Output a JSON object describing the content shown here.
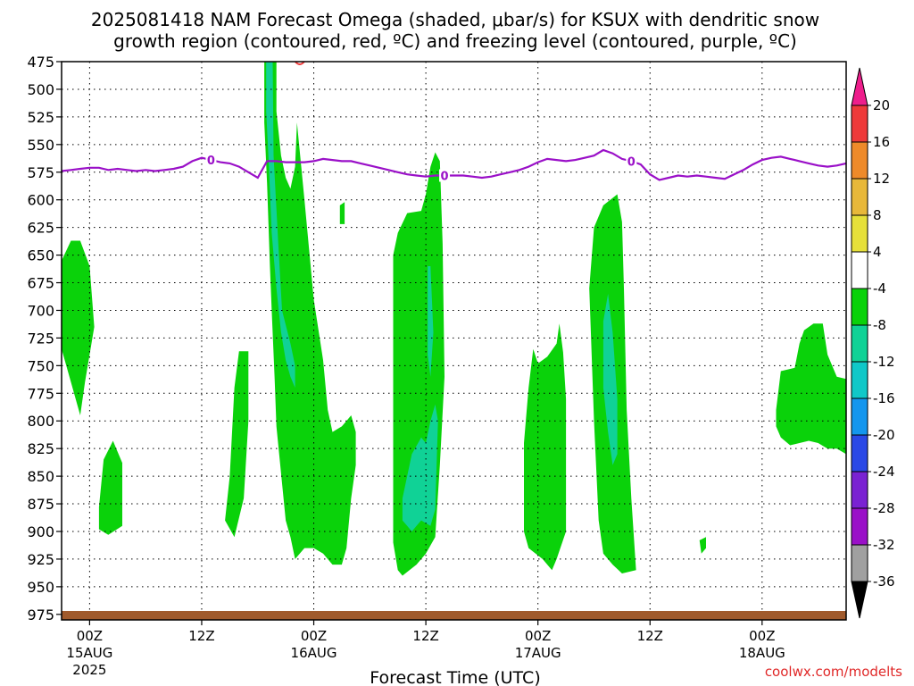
{
  "title_line1": "2025081418 NAM Forecast Omega (shaded, μbar/s) for KSUX with dendritic snow",
  "title_line2": "growth region (contoured, red, ºC) and freezing level (contoured, purple, ºC)",
  "credit": "coolwx.com/modelts",
  "chart_data": {
    "type": "heatmap",
    "xlabel": "Forecast Time (UTC)",
    "ylabel": "",
    "x_unit": "hours from 2025-08-14 18Z",
    "xlim": [
      3,
      87
    ],
    "ylim": [
      475,
      980
    ],
    "y_inverted": true,
    "y_ticks": [
      475,
      500,
      525,
      550,
      575,
      600,
      625,
      650,
      675,
      700,
      725,
      750,
      775,
      800,
      825,
      850,
      875,
      900,
      925,
      950,
      975
    ],
    "x_ticks": [
      {
        "x": 6,
        "label": "00Z",
        "sub": "15AUG",
        "sub2": "2025"
      },
      {
        "x": 18,
        "label": "12Z",
        "sub": "",
        "sub2": ""
      },
      {
        "x": 30,
        "label": "00Z",
        "sub": "16AUG",
        "sub2": ""
      },
      {
        "x": 42,
        "label": "12Z",
        "sub": "",
        "sub2": ""
      },
      {
        "x": 54,
        "label": "00Z",
        "sub": "17AUG",
        "sub2": ""
      },
      {
        "x": 66,
        "label": "12Z",
        "sub": "",
        "sub2": ""
      },
      {
        "x": 78,
        "label": "00Z",
        "sub": "18AUG",
        "sub2": ""
      }
    ],
    "grid": true,
    "colorbar": {
      "labels": [
        "20",
        "16",
        "12",
        "8",
        "4",
        "-4",
        "-8",
        "-12",
        "-16",
        "-20",
        "-24",
        "-28",
        "-32",
        "-36"
      ],
      "colors": [
        "#ee3a3a",
        "#ee8a2a",
        "#e8b83a",
        "#e6e03a",
        "#ffffff",
        "#0ad20a",
        "#10d296",
        "#10c8c8",
        "#1496ee",
        "#2a48e6",
        "#7a22d2",
        "#9a10c8",
        "#a0a0a0"
      ],
      "max_color": "#ee1e8c",
      "min_color": "#000000"
    },
    "freezing_level_contour_label": "0",
    "freezing_level": [
      [
        3,
        574
      ],
      [
        4,
        573
      ],
      [
        5,
        572
      ],
      [
        6,
        571
      ],
      [
        7,
        571
      ],
      [
        8,
        573
      ],
      [
        9,
        572
      ],
      [
        10,
        573
      ],
      [
        11,
        574
      ],
      [
        12,
        573
      ],
      [
        13,
        574
      ],
      [
        14,
        573
      ],
      [
        15,
        572
      ],
      [
        16,
        570
      ],
      [
        17,
        565
      ],
      [
        18,
        562
      ],
      [
        19,
        564
      ],
      [
        20,
        566
      ],
      [
        21,
        567
      ],
      [
        22,
        570
      ],
      [
        23,
        575
      ],
      [
        24,
        580
      ],
      [
        25,
        565
      ],
      [
        26,
        565
      ],
      [
        27,
        566
      ],
      [
        28,
        566
      ],
      [
        29,
        566
      ],
      [
        30,
        565
      ],
      [
        31,
        563
      ],
      [
        32,
        564
      ],
      [
        33,
        565
      ],
      [
        34,
        565
      ],
      [
        35,
        567
      ],
      [
        36,
        569
      ],
      [
        37,
        571
      ],
      [
        38,
        573
      ],
      [
        39,
        575
      ],
      [
        40,
        577
      ],
      [
        41,
        578
      ],
      [
        42,
        579
      ],
      [
        43,
        578
      ],
      [
        44,
        578
      ],
      [
        45,
        578
      ],
      [
        46,
        578
      ],
      [
        47,
        579
      ],
      [
        48,
        580
      ],
      [
        49,
        579
      ],
      [
        50,
        577
      ],
      [
        51,
        575
      ],
      [
        52,
        573
      ],
      [
        53,
        570
      ],
      [
        54,
        566
      ],
      [
        55,
        563
      ],
      [
        56,
        564
      ],
      [
        57,
        565
      ],
      [
        58,
        564
      ],
      [
        59,
        562
      ],
      [
        60,
        560
      ],
      [
        61,
        555
      ],
      [
        62,
        558
      ],
      [
        63,
        563
      ],
      [
        64,
        565
      ],
      [
        65,
        568
      ],
      [
        66,
        577
      ],
      [
        67,
        582
      ],
      [
        68,
        580
      ],
      [
        69,
        578
      ],
      [
        70,
        579
      ],
      [
        71,
        578
      ],
      [
        72,
        579
      ],
      [
        73,
        580
      ],
      [
        74,
        581
      ],
      [
        75,
        577
      ],
      [
        76,
        573
      ],
      [
        77,
        568
      ],
      [
        78,
        564
      ],
      [
        79,
        562
      ],
      [
        80,
        561
      ],
      [
        81,
        563
      ],
      [
        82,
        565
      ],
      [
        83,
        567
      ],
      [
        84,
        569
      ],
      [
        85,
        570
      ],
      [
        86,
        569
      ],
      [
        87,
        567
      ]
    ],
    "dendritic_growth_region": [
      [
        28.5,
        475
      ]
    ],
    "shaded_regions": [
      {
        "omega": "-4",
        "points": [
          [
            3,
            655
          ],
          [
            4,
            637
          ],
          [
            5,
            637
          ],
          [
            6,
            660
          ],
          [
            6.5,
            715
          ],
          [
            5.5,
            765
          ],
          [
            5,
            795
          ],
          [
            4,
            765
          ],
          [
            3,
            735
          ]
        ]
      },
      {
        "omega": "-4",
        "points": [
          [
            7,
            878
          ],
          [
            7.5,
            835
          ],
          [
            8.5,
            818
          ],
          [
            9.5,
            838
          ],
          [
            9.5,
            895
          ],
          [
            8,
            903
          ],
          [
            7,
            898
          ]
        ]
      },
      {
        "omega": "-4",
        "points": [
          [
            20.5,
            890
          ],
          [
            21,
            850
          ],
          [
            21.5,
            770
          ],
          [
            22,
            737
          ],
          [
            23,
            737
          ],
          [
            23,
            800
          ],
          [
            22.5,
            870
          ],
          [
            21.5,
            905
          ]
        ]
      },
      {
        "omega": "-4",
        "points": [
          [
            24.7,
            475
          ],
          [
            26,
            475
          ],
          [
            26,
            520
          ],
          [
            26.5,
            560
          ],
          [
            27,
            580
          ],
          [
            27.5,
            590
          ],
          [
            28,
            570
          ],
          [
            28.2,
            530
          ],
          [
            29,
            600
          ],
          [
            30,
            690
          ],
          [
            31,
            745
          ],
          [
            31.5,
            790
          ],
          [
            32,
            810
          ],
          [
            33,
            805
          ],
          [
            33.5,
            800
          ],
          [
            34,
            795
          ],
          [
            34.5,
            810
          ],
          [
            34.5,
            840
          ],
          [
            34,
            870
          ],
          [
            33.5,
            915
          ],
          [
            33,
            930
          ],
          [
            32,
            930
          ],
          [
            31,
            920
          ],
          [
            30,
            915
          ],
          [
            29,
            915
          ],
          [
            28,
            925
          ],
          [
            27.5,
            905
          ],
          [
            27,
            890
          ],
          [
            26,
            805
          ],
          [
            25.8,
            760
          ],
          [
            25.5,
            700
          ],
          [
            25.3,
            660
          ],
          [
            25,
            585
          ],
          [
            24.7,
            530
          ]
        ]
      },
      {
        "omega": "-4",
        "points": [
          [
            32.8,
            605
          ],
          [
            33.3,
            602
          ],
          [
            33.3,
            622
          ],
          [
            32.8,
            622
          ]
        ]
      },
      {
        "omega": "-4",
        "points": [
          [
            38.5,
            650
          ],
          [
            39,
            630
          ],
          [
            40,
            612
          ],
          [
            41.5,
            610
          ],
          [
            42,
            595
          ],
          [
            42.5,
            570
          ],
          [
            43,
            557
          ],
          [
            43.5,
            565
          ],
          [
            43.8,
            640
          ],
          [
            44,
            760
          ],
          [
            43.5,
            840
          ],
          [
            43,
            905
          ],
          [
            42,
            920
          ],
          [
            41,
            930
          ],
          [
            39.5,
            940
          ],
          [
            39,
            935
          ],
          [
            38.5,
            910
          ],
          [
            38.5,
            790
          ]
        ]
      },
      {
        "omega": "-4",
        "points": [
          [
            52.5,
            820
          ],
          [
            53,
            770
          ],
          [
            53.5,
            735
          ],
          [
            54,
            748
          ],
          [
            55,
            742
          ],
          [
            56,
            730
          ],
          [
            56.3,
            712
          ],
          [
            56.7,
            738
          ],
          [
            57,
            780
          ],
          [
            57,
            900
          ],
          [
            56,
            925
          ],
          [
            55.5,
            935
          ],
          [
            54.5,
            925
          ],
          [
            53,
            915
          ],
          [
            52.5,
            900
          ]
        ]
      },
      {
        "omega": "-4",
        "points": [
          [
            59.5,
            680
          ],
          [
            60,
            625
          ],
          [
            61,
            605
          ],
          [
            62.5,
            595
          ],
          [
            63,
            620
          ],
          [
            63.2,
            680
          ],
          [
            63.5,
            790
          ],
          [
            64,
            870
          ],
          [
            64.5,
            935
          ],
          [
            63,
            938
          ],
          [
            62,
            930
          ],
          [
            61,
            920
          ],
          [
            60.5,
            890
          ],
          [
            60,
            800
          ]
        ]
      },
      {
        "omega": "-4",
        "points": [
          [
            71.3,
            908
          ],
          [
            72,
            905
          ],
          [
            72,
            915
          ],
          [
            71.5,
            920
          ]
        ]
      },
      {
        "omega": "-4",
        "points": [
          [
            79.5,
            790
          ],
          [
            80,
            755
          ],
          [
            81.5,
            752
          ],
          [
            82,
            730
          ],
          [
            82.5,
            718
          ],
          [
            83.5,
            712
          ],
          [
            84.5,
            712
          ],
          [
            85,
            740
          ],
          [
            86,
            760
          ],
          [
            87,
            762
          ],
          [
            87,
            830
          ],
          [
            86,
            825
          ],
          [
            85,
            825
          ],
          [
            84,
            820
          ],
          [
            83,
            818
          ],
          [
            82,
            820
          ],
          [
            81,
            822
          ],
          [
            80,
            815
          ],
          [
            79.5,
            805
          ]
        ]
      },
      {
        "omega": "-8",
        "points": [
          [
            24.9,
            475
          ],
          [
            25.6,
            475
          ],
          [
            25.7,
            560
          ],
          [
            26.2,
            640
          ],
          [
            26.6,
            700
          ],
          [
            27.5,
            730
          ],
          [
            28,
            750
          ],
          [
            28,
            770
          ],
          [
            27.5,
            760
          ],
          [
            27,
            745
          ],
          [
            26.5,
            720
          ],
          [
            26,
            680
          ],
          [
            25.5,
            630
          ],
          [
            25.2,
            570
          ],
          [
            24.9,
            520
          ]
        ]
      },
      {
        "omega": "-8",
        "points": [
          [
            39.5,
            870
          ],
          [
            40.5,
            830
          ],
          [
            41.5,
            815
          ],
          [
            42,
            820
          ],
          [
            42.5,
            800
          ],
          [
            43,
            785
          ],
          [
            43.3,
            800
          ],
          [
            43,
            880
          ],
          [
            42.5,
            895
          ],
          [
            41.5,
            890
          ],
          [
            41,
            895
          ],
          [
            40.5,
            900
          ],
          [
            40,
            895
          ],
          [
            39.5,
            890
          ]
        ]
      },
      {
        "omega": "-8",
        "points": [
          [
            42.2,
            660
          ],
          [
            42.5,
            660
          ],
          [
            42.8,
            720
          ],
          [
            42.5,
            760
          ],
          [
            42.2,
            740
          ]
        ]
      },
      {
        "omega": "-8",
        "points": [
          [
            61,
            710
          ],
          [
            61.5,
            685
          ],
          [
            62,
            720
          ],
          [
            62.5,
            780
          ],
          [
            62.5,
            830
          ],
          [
            62,
            840
          ],
          [
            61.5,
            810
          ],
          [
            61,
            770
          ]
        ]
      }
    ],
    "ground_strip_color": "#a05a2c"
  }
}
